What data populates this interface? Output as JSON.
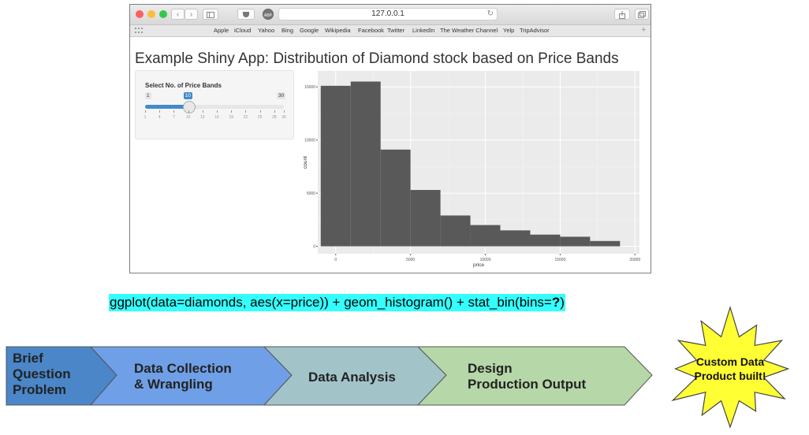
{
  "browser": {
    "url": "127.0.0.1",
    "favorites": [
      "Apple",
      "iCloud",
      "Yahoo",
      "Bing",
      "Google",
      "Wikipedia",
      "Facebook",
      "Twitter",
      "LinkedIn",
      "The Weather Channel",
      "Yelp",
      "TripAdvisor"
    ],
    "back_glyph": "‹",
    "forward_glyph": "›",
    "reload_glyph": "↻",
    "plus_glyph": "+",
    "icons": [
      "sidebar-icon",
      "pocket-icon",
      "adblock-icon",
      "reload-icon",
      "share-icon",
      "tabs-icon",
      "grid-icon"
    ]
  },
  "shiny": {
    "title": "Example Shiny App: Distribution of Diamond stock based on Price Bands",
    "slider": {
      "label": "Select No. of Price Bands",
      "min": 1,
      "max": 30,
      "value": 10,
      "min_label": "1",
      "max_label": "30",
      "value_label": "10",
      "tick_labels": [
        "1",
        "4",
        "7",
        "10",
        "13",
        "16",
        "19",
        "22",
        "25",
        "28",
        "30"
      ],
      "accent_color": "#428bca"
    }
  },
  "chart_data": {
    "type": "bar",
    "xlabel": "price",
    "ylabel": "count",
    "xlim": [
      -1200,
      20300
    ],
    "ylim": [
      -700,
      16500
    ],
    "x_ticks": [
      0,
      5000,
      10000,
      15000,
      20000
    ],
    "y_ticks": [
      0,
      5000,
      10000,
      15000
    ],
    "x_tick_labels": [
      "0",
      "5000",
      "10000",
      "15000",
      "20000"
    ],
    "y_tick_labels": [
      "0",
      "5000",
      "10000",
      "15000"
    ],
    "bins": [
      {
        "x0": -1000,
        "x1": 1000,
        "count": 15100
      },
      {
        "x0": 1000,
        "x1": 3000,
        "count": 15500
      },
      {
        "x0": 3000,
        "x1": 5000,
        "count": 9100
      },
      {
        "x0": 5000,
        "x1": 7000,
        "count": 5300
      },
      {
        "x0": 7000,
        "x1": 9000,
        "count": 2900
      },
      {
        "x0": 9000,
        "x1": 11000,
        "count": 2000
      },
      {
        "x0": 11000,
        "x1": 13000,
        "count": 1500
      },
      {
        "x0": 13000,
        "x1": 15000,
        "count": 1100
      },
      {
        "x0": 15000,
        "x1": 17000,
        "count": 900
      },
      {
        "x0": 17000,
        "x1": 19000,
        "count": 500
      }
    ],
    "grid": true,
    "panel_color": "#ebebeb",
    "bar_color": "#595959"
  },
  "code": {
    "before": "ggplot(data=diamonds, aes(x=price)) + geom_histogram() + stat_bin(bins=",
    "bold": "?",
    "after": ")",
    "highlight_color": "#33ffff"
  },
  "process": {
    "steps": [
      {
        "lines": [
          "Brief",
          "Question",
          "Problem"
        ],
        "color": "#4a86c8"
      },
      {
        "lines": [
          "Data Collection",
          "& Wrangling"
        ],
        "color": "#6f9fe6"
      },
      {
        "lines": [
          "Data Analysis"
        ],
        "color": "#a2c4c9"
      },
      {
        "lines": [
          "Design",
          "Production Output"
        ],
        "color": "#b6d7a8"
      }
    ],
    "result": {
      "lines": [
        "Custom Data",
        "Product built!"
      ],
      "color": "#ffff33"
    }
  }
}
